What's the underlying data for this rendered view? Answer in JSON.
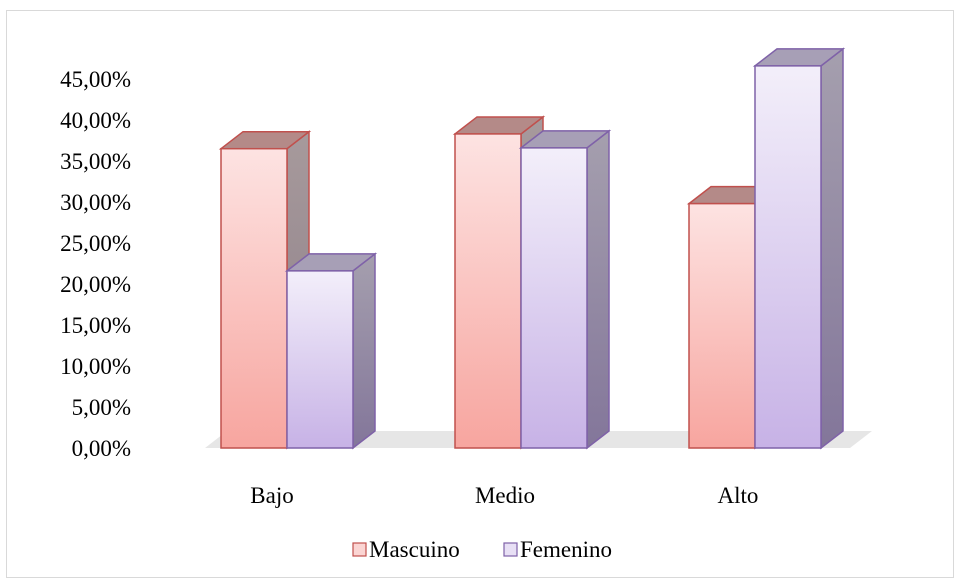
{
  "chart_data": {
    "type": "bar",
    "style": "3d-clustered-column",
    "categories": [
      "Bajo",
      "Medio",
      "Alto"
    ],
    "series": [
      {
        "name": "Mascuino",
        "values": [
          36.5,
          38.3,
          29.8
        ],
        "color": "#f4a3a0",
        "edge_color": "#c0504d"
      },
      {
        "name": "Femenino",
        "values": [
          21.6,
          36.6,
          46.6
        ],
        "color": "#d8c9ee",
        "edge_color": "#7f62a8"
      }
    ],
    "ylim": [
      0,
      45
    ],
    "y_ticks": [
      "0,00%",
      "5,00%",
      "10,00%",
      "15,00%",
      "20,00%",
      "25,00%",
      "30,00%",
      "35,00%",
      "40,00%",
      "45,00%"
    ],
    "grid": false,
    "legend_position": "bottom",
    "title": "",
    "xlabel": "",
    "ylabel": ""
  }
}
